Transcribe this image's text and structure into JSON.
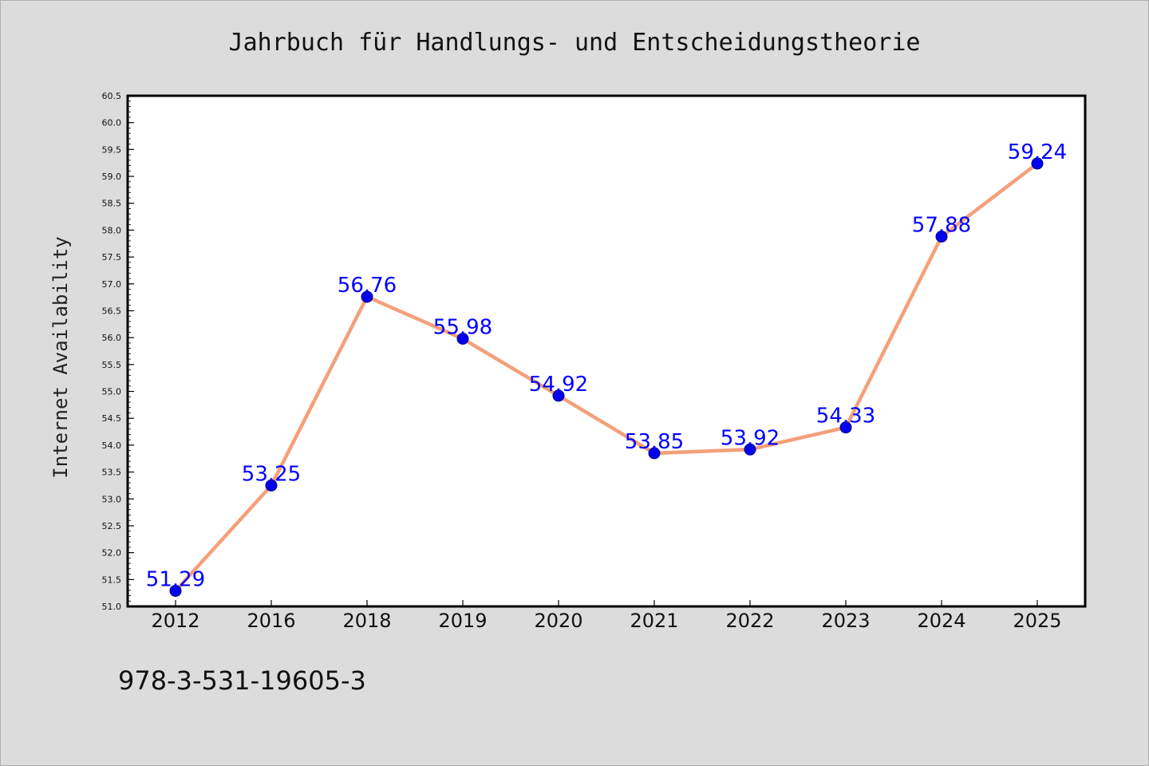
{
  "page": {
    "footer_text": "978-3-531-19605-3"
  },
  "colors": {
    "background": "#dcdcdc",
    "plot_background": "#ffffff",
    "line": "#f4a07a",
    "marker": "#0000ee",
    "data_label": "#0000ff"
  },
  "chart_data": {
    "type": "line",
    "title": "Jahrbuch für Handlungs- und Entscheidungstheorie",
    "xlabel": "",
    "ylabel": "Internet Availability",
    "ylim": [
      51.0,
      60.5
    ],
    "ytick_step": 0.5,
    "yticks": [
      "51.0",
      "51.5",
      "52.0",
      "52.5",
      "53.0",
      "53.5",
      "54.0",
      "54.5",
      "55.0",
      "55.5",
      "56.0",
      "56.5",
      "57.0",
      "57.5",
      "58.0",
      "58.5",
      "59.0",
      "59.5",
      "60.0",
      "60.5"
    ],
    "categories": [
      "2012",
      "2016",
      "2018",
      "2019",
      "2020",
      "2021",
      "2022",
      "2023",
      "2024",
      "2025"
    ],
    "series": [
      {
        "values": [
          51.29,
          53.25,
          56.76,
          55.98,
          54.92,
          53.85,
          53.92,
          54.33,
          57.88,
          59.24
        ],
        "labels": [
          "51.29",
          "53.25",
          "56.76",
          "55.98",
          "54.92",
          "53.85",
          "53.92",
          "54.33",
          "57.88",
          "59.24"
        ]
      }
    ],
    "grid": false,
    "legend": "none"
  }
}
